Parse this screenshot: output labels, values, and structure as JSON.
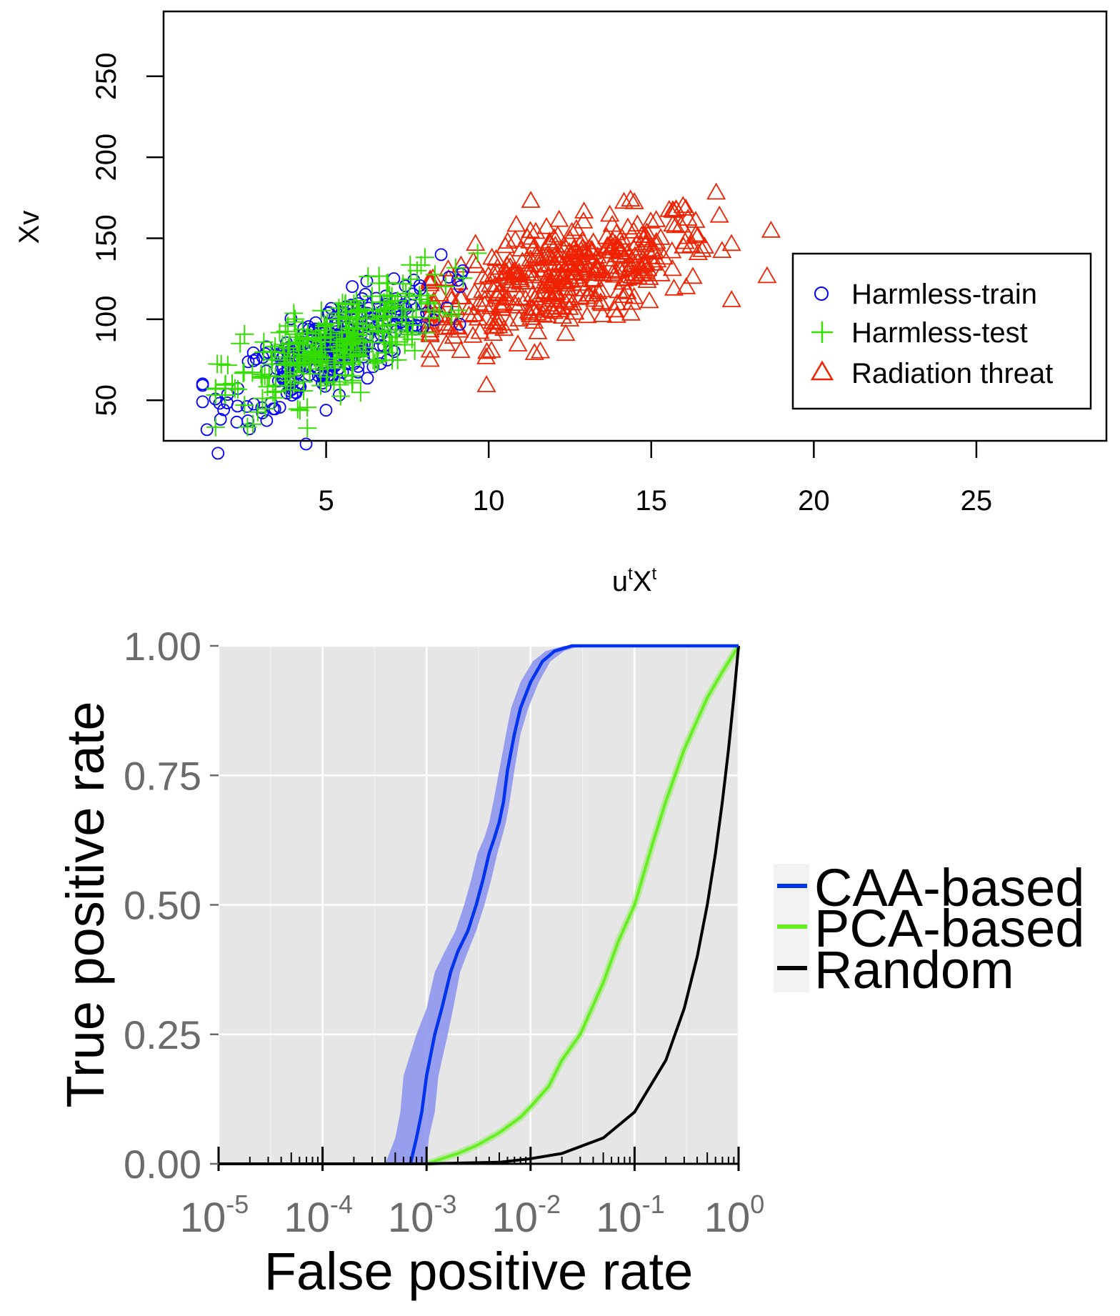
{
  "chart_data": [
    {
      "type": "scatter",
      "xlabel": "u",
      "xlabel_super1": "t",
      "xlabel_mid": "X",
      "xlabel_super2": "t",
      "ylabel": "Xv",
      "xlim": [
        0,
        29
      ],
      "ylim": [
        25,
        290
      ],
      "xticks": [
        5,
        10,
        15,
        20,
        25
      ],
      "yticks": [
        50,
        100,
        150,
        200,
        250
      ],
      "grid": false,
      "legend_position": "right",
      "series": [
        {
          "name": "Harmless-train",
          "marker": "circle",
          "color": "#0000ff"
        },
        {
          "name": "Harmless-test",
          "marker": "plus",
          "color": "#33dd00"
        },
        {
          "name": "Radiation threat",
          "marker": "triangle",
          "color": "#ee2200"
        }
      ]
    },
    {
      "type": "line",
      "xlabel": "False positive rate",
      "ylabel": "True positive rate",
      "x_scale": "log",
      "xlim": [
        1e-05,
        1
      ],
      "ylim": [
        0,
        1
      ],
      "xticks": [
        1e-05,
        0.0001,
        0.001,
        0.01,
        0.1,
        1
      ],
      "xtick_base": "10",
      "xtick_exponents": [
        "-5",
        "-4",
        "-3",
        "-2",
        "-1",
        "0"
      ],
      "yticks": [
        "0.00",
        "0.25",
        "0.50",
        "0.75",
        "1.00"
      ],
      "grid": true,
      "legend_position": "right",
      "series": [
        {
          "name": "CAA-based",
          "color": "#0033ee",
          "band_color": "#8a90ee",
          "x": [
            0.0007,
            0.0008,
            0.0009,
            0.001,
            0.0012,
            0.0014,
            0.0017,
            0.002,
            0.0025,
            0.003,
            0.0035,
            0.004,
            0.0045,
            0.005,
            0.0055,
            0.006,
            0.007,
            0.008,
            0.01,
            0.013,
            0.017,
            0.025,
            0.04,
            0.1,
            0.3,
            1
          ],
          "y": [
            0,
            0.05,
            0.1,
            0.17,
            0.25,
            0.3,
            0.37,
            0.41,
            0.45,
            0.5,
            0.55,
            0.6,
            0.63,
            0.66,
            0.7,
            0.76,
            0.83,
            0.88,
            0.93,
            0.97,
            0.99,
            1.0,
            1.0,
            1.0,
            1.0,
            1.0
          ],
          "lower": [
            0.0004,
            0.0005,
            0.00056,
            0.0006,
            0.0008,
            0.001,
            0.0012,
            0.0015,
            0.0019,
            0.0023,
            0.0027,
            0.0031,
            0.0036,
            0.004,
            0.0044,
            0.005,
            0.0058,
            0.0065,
            0.008,
            0.0105,
            0.014,
            0.021,
            0.034,
            0.1,
            0.3,
            1
          ],
          "upper": [
            0.001,
            0.00105,
            0.0012,
            0.0013,
            0.0016,
            0.0018,
            0.0021,
            0.0025,
            0.003,
            0.0036,
            0.0042,
            0.0048,
            0.0053,
            0.0058,
            0.0063,
            0.007,
            0.008,
            0.0095,
            0.012,
            0.0155,
            0.021,
            0.03,
            0.047,
            0.1,
            0.3,
            1
          ]
        },
        {
          "name": "PCA-based",
          "color": "#66ee22",
          "x": [
            0.001,
            0.002,
            0.003,
            0.005,
            0.008,
            0.01,
            0.015,
            0.02,
            0.03,
            0.05,
            0.07,
            0.1,
            0.15,
            0.2,
            0.3,
            0.5,
            0.7,
            1.0
          ],
          "y": [
            0.0,
            0.02,
            0.035,
            0.06,
            0.09,
            0.11,
            0.15,
            0.2,
            0.25,
            0.35,
            0.43,
            0.5,
            0.62,
            0.7,
            0.8,
            0.9,
            0.95,
            1.0
          ]
        },
        {
          "name": "Random",
          "color": "#000000",
          "x": [
            1e-05,
            0.001,
            0.005,
            0.01,
            0.02,
            0.05,
            0.1,
            0.2,
            0.3,
            0.4,
            0.5,
            0.6,
            0.7,
            0.8,
            0.9,
            1.0
          ],
          "y": [
            0.0,
            0.0,
            0.003,
            0.01,
            0.02,
            0.05,
            0.1,
            0.2,
            0.3,
            0.4,
            0.5,
            0.6,
            0.7,
            0.8,
            0.9,
            1.0
          ]
        }
      ]
    }
  ]
}
